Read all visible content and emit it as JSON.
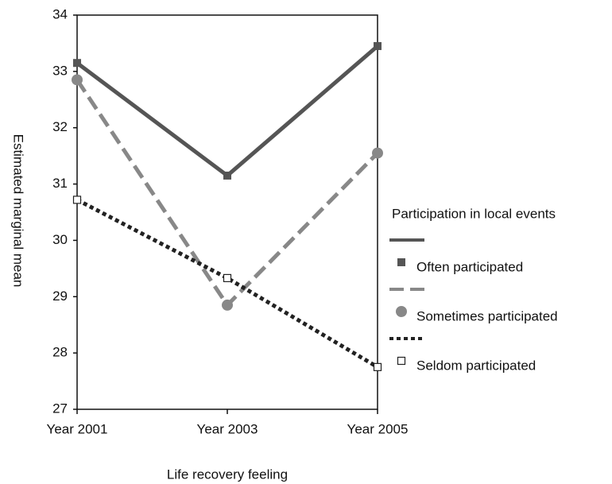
{
  "chart_data": {
    "type": "line",
    "x_label": "Life recovery feeling",
    "y_label": "Estimated marginal mean",
    "categories": [
      "Year 2001",
      "Year 2003",
      "Year 2005"
    ],
    "ylim": [
      27,
      34
    ],
    "yticks": [
      27,
      28,
      29,
      30,
      31,
      32,
      33,
      34
    ],
    "legend_title": "Participation in local events",
    "legend_position": "right",
    "series": [
      {
        "name": "Often participated",
        "color": "#555555",
        "line_style": "solid",
        "marker": "square",
        "values": [
          33.15,
          31.15,
          33.45
        ]
      },
      {
        "name": "Sometimes participated",
        "color": "#888888",
        "line_style": "dashed",
        "marker": "circle",
        "values": [
          32.85,
          28.85,
          31.55
        ]
      },
      {
        "name": "Seldom participated",
        "color": "#222222",
        "line_style": "dotted",
        "marker": "open-square",
        "values": [
          30.72,
          29.33,
          27.75
        ]
      }
    ]
  }
}
